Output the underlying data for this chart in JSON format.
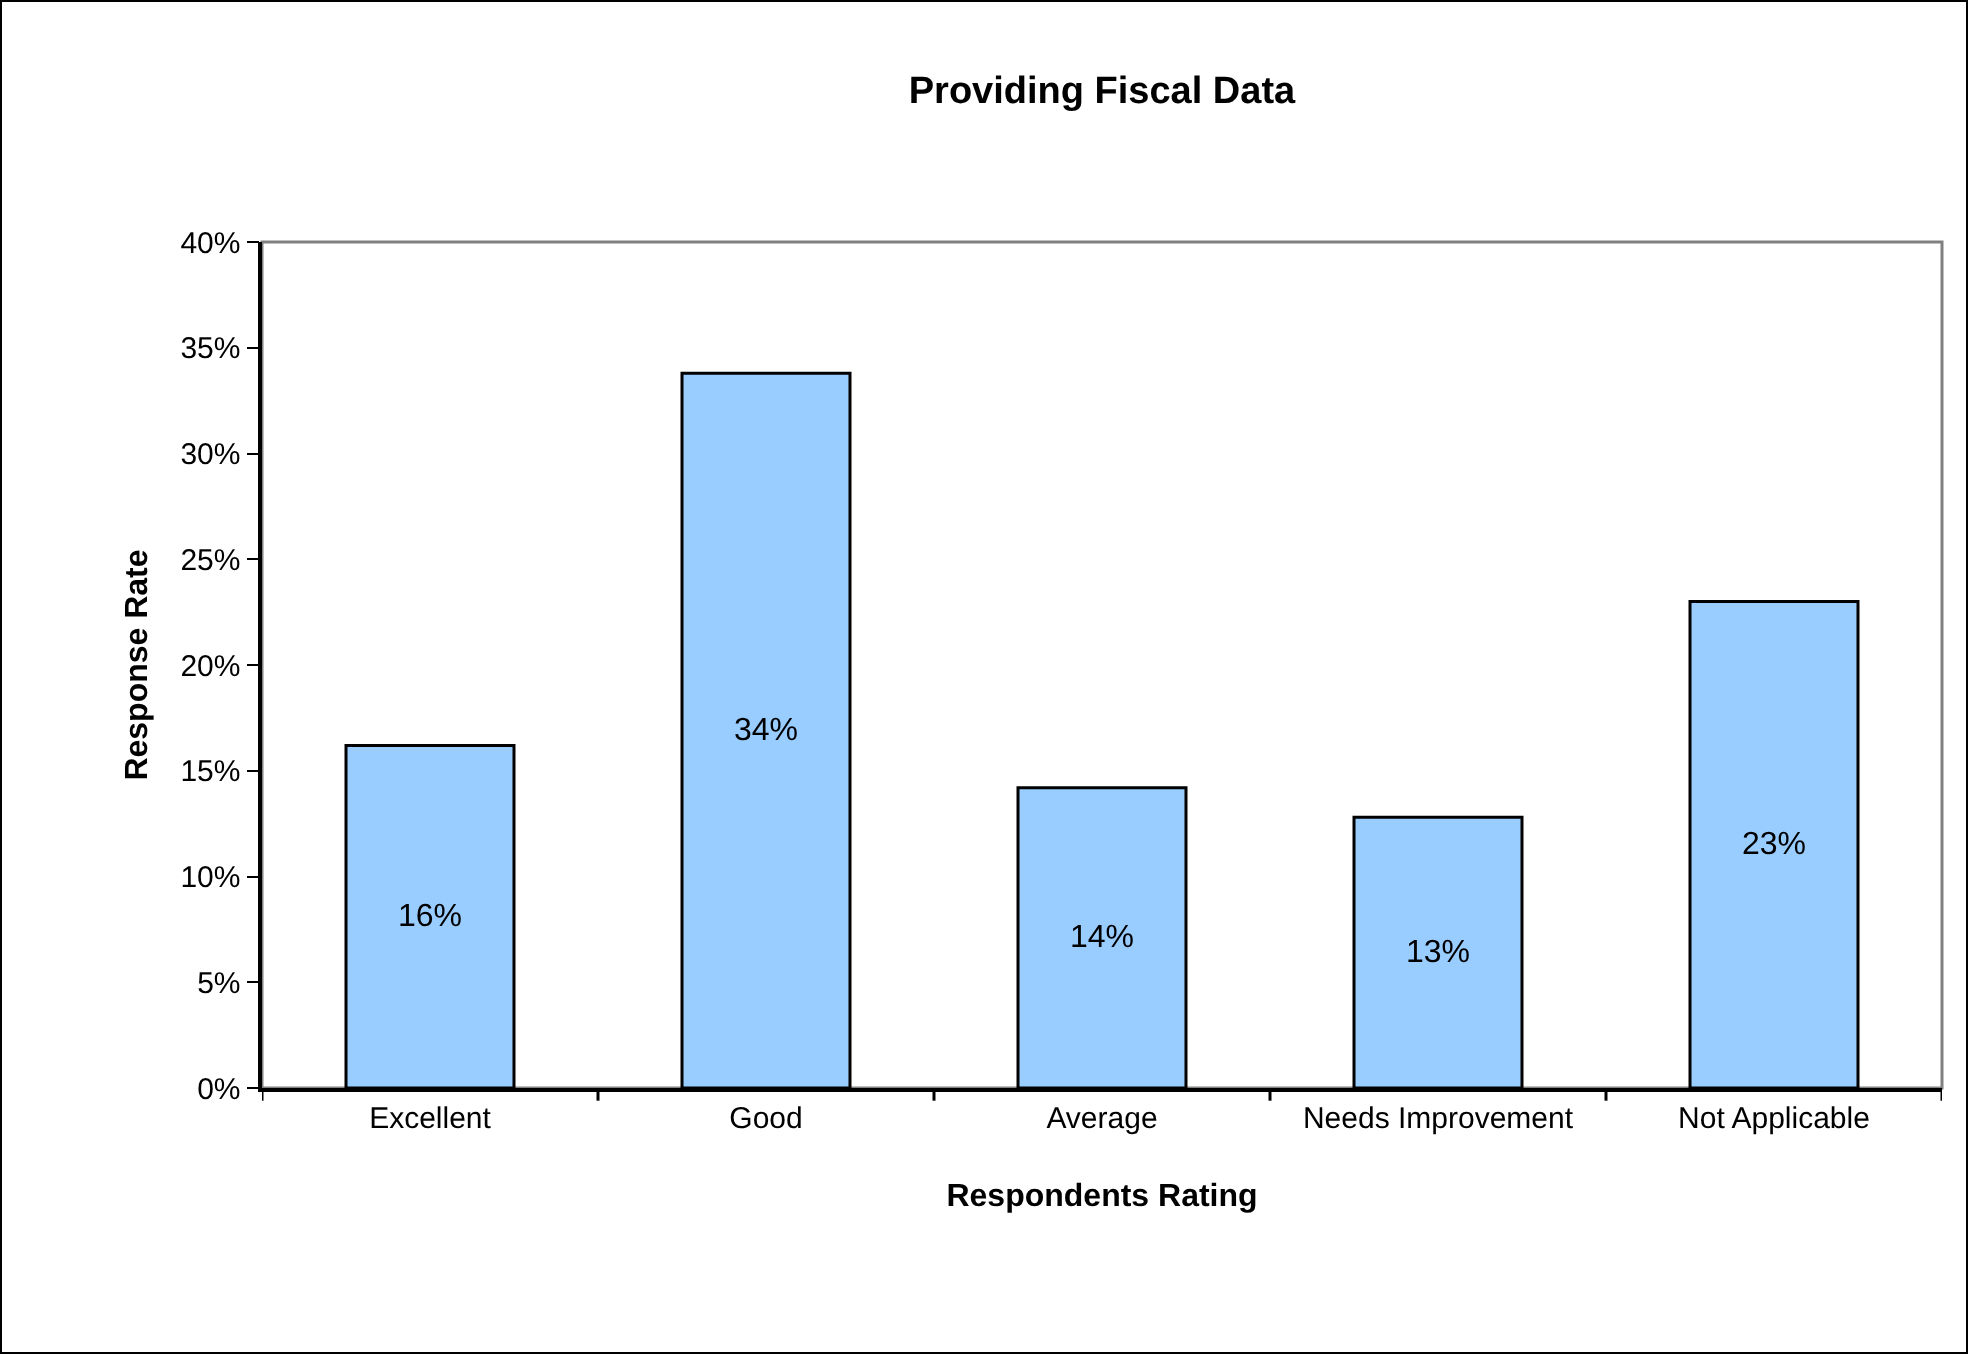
{
  "chart_data": {
    "type": "bar",
    "title": "Providing Fiscal Data",
    "xlabel": "Respondents Rating",
    "ylabel": "Response Rate",
    "categories": [
      "Excellent",
      "Good",
      "Average",
      "Needs Improvement",
      "Not Applicable"
    ],
    "values": [
      16.2,
      33.8,
      14.2,
      12.8,
      23.0
    ],
    "value_labels": [
      "16%",
      "34%",
      "14%",
      "13%",
      "23%"
    ],
    "color": "#99ccff",
    "ylim": [
      0,
      40
    ],
    "yticks": [
      {
        "value": 0,
        "label": "0%"
      },
      {
        "value": 5,
        "label": "5%"
      },
      {
        "value": 10,
        "label": "10%"
      },
      {
        "value": 15,
        "label": "15%"
      },
      {
        "value": 20,
        "label": "20%"
      },
      {
        "value": 25,
        "label": "25%"
      },
      {
        "value": 30,
        "label": "30%"
      },
      {
        "value": 35,
        "label": "35%"
      },
      {
        "value": 40,
        "label": "40%"
      }
    ],
    "grid": false
  }
}
